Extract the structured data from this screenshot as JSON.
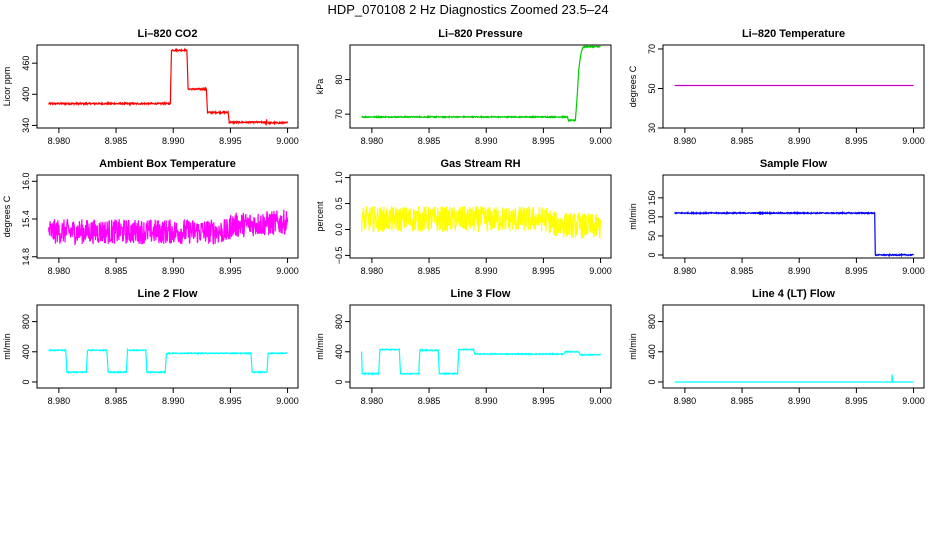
{
  "title": "HDP_070108  2 Hz Diagnostics Zoomed 23.5–24",
  "chart_data": [
    {
      "type": "line",
      "title": "Li–820 CO2",
      "ylabel": "Licor ppm",
      "color": "#ff0000",
      "xlim": [
        8.979,
        9.0
      ],
      "xticks": [
        8.98,
        8.985,
        8.99,
        8.995,
        9.0
      ],
      "xtick_labels": [
        "8.980",
        "8.985",
        "8.990",
        "8.995",
        "9.000"
      ],
      "ylim": [
        335,
        495
      ],
      "yticks": [
        340,
        400,
        460
      ],
      "ytick_labels": [
        "340",
        "400",
        "460"
      ],
      "noise": 1.5,
      "series": [
        {
          "points": [
            [
              8.9791,
              382
            ],
            [
              8.98975,
              382
            ],
            [
              8.98985,
              485
            ],
            [
              8.9912,
              485
            ],
            [
              8.9913,
              410
            ],
            [
              8.9929,
              410
            ],
            [
              8.993,
              365
            ],
            [
              8.9948,
              365
            ],
            [
              8.9949,
              346
            ],
            [
              8.9981,
              346
            ],
            [
              8.99812,
              340
            ],
            [
              8.99818,
              352
            ],
            [
              8.9982,
              345
            ],
            [
              9.0,
              345
            ]
          ]
        }
      ]
    },
    {
      "type": "line",
      "title": "Li–820 Pressure",
      "ylabel": "kPa",
      "color": "#00cc00",
      "xlim": [
        8.979,
        9.0
      ],
      "xticks": [
        8.98,
        8.985,
        8.99,
        8.995,
        9.0
      ],
      "xtick_labels": [
        "8.980",
        "8.985",
        "8.990",
        "8.995",
        "9.000"
      ],
      "ylim": [
        66,
        90
      ],
      "yticks": [
        70,
        80
      ],
      "ytick_labels": [
        "70",
        "80"
      ],
      "noise": 0.15,
      "series": [
        {
          "points": [
            [
              8.9791,
              69.2
            ],
            [
              8.9971,
              69.2
            ],
            [
              8.9972,
              68.2
            ],
            [
              8.9978,
              68.2
            ],
            [
              8.99795,
              75
            ],
            [
              8.9981,
              83
            ],
            [
              8.99825,
              87
            ],
            [
              8.9984,
              89
            ],
            [
              8.9986,
              89.5
            ],
            [
              9.0,
              89.5
            ]
          ]
        }
      ]
    },
    {
      "type": "line",
      "title": "Li–820 Temperature",
      "ylabel": "degrees C",
      "color": "#cc00cc",
      "xlim": [
        8.979,
        9.0
      ],
      "xticks": [
        8.98,
        8.985,
        8.99,
        8.995,
        9.0
      ],
      "xtick_labels": [
        "8.980",
        "8.985",
        "8.990",
        "8.995",
        "9.000"
      ],
      "ylim": [
        30,
        72
      ],
      "yticks": [
        30,
        50,
        70
      ],
      "ytick_labels": [
        "30",
        "50",
        "70"
      ],
      "noise": 0,
      "series": [
        {
          "points": [
            [
              8.9791,
              51.5
            ],
            [
              9.0,
              51.5
            ]
          ]
        }
      ]
    },
    {
      "type": "line",
      "title": "Ambient Box Temperature",
      "ylabel": "degrees C",
      "color": "#ff00ff",
      "xlim": [
        8.979,
        9.0
      ],
      "xticks": [
        8.98,
        8.985,
        8.99,
        8.995,
        9.0
      ],
      "xtick_labels": [
        "8.980",
        "8.985",
        "8.990",
        "8.995",
        "9.000"
      ],
      "ylim": [
        14.78,
        16.1
      ],
      "yticks": [
        14.8,
        15.4,
        16.0
      ],
      "ytick_labels": [
        "14.8",
        "15.4",
        "16.0"
      ],
      "noise": 0.2,
      "series": [
        {
          "points": [
            [
              8.9791,
              15.2
            ],
            [
              8.9949,
              15.2
            ],
            [
              8.995,
              15.3
            ],
            [
              9.0,
              15.35
            ]
          ]
        }
      ]
    },
    {
      "type": "line",
      "title": "Gas Stream RH",
      "ylabel": "percent",
      "color": "#ffff00",
      "xlim": [
        8.979,
        9.0
      ],
      "xticks": [
        8.98,
        8.985,
        8.99,
        8.995,
        9.0
      ],
      "xtick_labels": [
        "8.980",
        "8.985",
        "8.990",
        "8.995",
        "9.000"
      ],
      "ylim": [
        -0.55,
        1.05
      ],
      "yticks": [
        -0.5,
        0.0,
        0.5,
        1.0
      ],
      "ytick_labels": [
        "−0.5",
        "0.0",
        "0.5",
        "1.0"
      ],
      "noise": 0.25,
      "series": [
        {
          "points": [
            [
              8.9791,
              0.2
            ],
            [
              8.9952,
              0.2
            ],
            [
              8.996,
              0.1
            ],
            [
              9.0,
              0.05
            ]
          ]
        }
      ]
    },
    {
      "type": "line",
      "title": "Sample Flow",
      "ylabel": "ml/min",
      "color": "#0000ff",
      "xlim": [
        8.979,
        9.0
      ],
      "xticks": [
        8.98,
        8.985,
        8.99,
        8.995,
        9.0
      ],
      "xtick_labels": [
        "8.980",
        "8.985",
        "8.990",
        "8.995",
        "9.000"
      ],
      "ylim": [
        -8,
        210
      ],
      "yticks": [
        0,
        50,
        100,
        150
      ],
      "ytick_labels": [
        "0",
        "50",
        "100",
        "150"
      ],
      "noise": 1.5,
      "series": [
        {
          "points": [
            [
              8.9791,
              110
            ],
            [
              8.9966,
              110
            ],
            [
              8.99665,
              0
            ],
            [
              9.0,
              0
            ]
          ]
        }
      ]
    },
    {
      "type": "line",
      "title": "Line 2 Flow",
      "ylabel": "ml/min",
      "color": "#00ffff",
      "xlim": [
        8.979,
        9.0
      ],
      "xticks": [
        8.98,
        8.985,
        8.99,
        8.995,
        9.0
      ],
      "xtick_labels": [
        "8.980",
        "8.985",
        "8.990",
        "8.995",
        "9.000"
      ],
      "ylim": [
        -80,
        1020
      ],
      "yticks": [
        0,
        400,
        800
      ],
      "ytick_labels": [
        "0",
        "400",
        "800"
      ],
      "noise": 6,
      "series": [
        {
          "points": [
            [
              8.9791,
              420
            ],
            [
              8.9806,
              420
            ],
            [
              8.9807,
              130
            ],
            [
              8.9824,
              130
            ],
            [
              8.9825,
              420
            ],
            [
              8.9842,
              420
            ],
            [
              8.9843,
              130
            ],
            [
              8.9859,
              130
            ],
            [
              8.986,
              420
            ],
            [
              8.9876,
              420
            ],
            [
              8.9877,
              130
            ],
            [
              8.9893,
              130
            ],
            [
              8.9894,
              380
            ],
            [
              8.9968,
              380
            ],
            [
              8.9969,
              130
            ],
            [
              8.9982,
              130
            ],
            [
              8.9983,
              380
            ],
            [
              9.0,
              380
            ]
          ]
        }
      ]
    },
    {
      "type": "line",
      "title": "Line 3 Flow",
      "ylabel": "ml/min",
      "color": "#00ffff",
      "xlim": [
        8.979,
        9.0
      ],
      "xticks": [
        8.98,
        8.985,
        8.99,
        8.995,
        9.0
      ],
      "xtick_labels": [
        "8.980",
        "8.985",
        "8.990",
        "8.995",
        "9.000"
      ],
      "ylim": [
        -80,
        1020
      ],
      "yticks": [
        0,
        400,
        800
      ],
      "ytick_labels": [
        "0",
        "400",
        "800"
      ],
      "noise": 6,
      "series": [
        {
          "points": [
            [
              8.9791,
              400
            ],
            [
              8.97915,
              110
            ],
            [
              8.9806,
              110
            ],
            [
              8.9807,
              430
            ],
            [
              8.9824,
              430
            ],
            [
              8.9825,
              110
            ],
            [
              8.9841,
              110
            ],
            [
              8.9842,
              420
            ],
            [
              8.9858,
              420
            ],
            [
              8.9859,
              110
            ],
            [
              8.9875,
              110
            ],
            [
              8.9876,
              430
            ],
            [
              8.9889,
              430
            ],
            [
              8.989,
              370
            ],
            [
              8.9968,
              370
            ],
            [
              8.9969,
              400
            ],
            [
              8.9981,
              400
            ],
            [
              8.9982,
              360
            ],
            [
              9.0,
              360
            ]
          ]
        }
      ]
    },
    {
      "type": "line",
      "title": "Line 4 (LT) Flow",
      "ylabel": "ml/min",
      "color": "#00ffff",
      "xlim": [
        8.979,
        9.0
      ],
      "xticks": [
        8.98,
        8.985,
        8.99,
        8.995,
        9.0
      ],
      "xtick_labels": [
        "8.980",
        "8.985",
        "8.990",
        "8.995",
        "9.000"
      ],
      "ylim": [
        -80,
        1020
      ],
      "yticks": [
        0,
        400,
        800
      ],
      "ytick_labels": [
        "0",
        "400",
        "800"
      ],
      "noise": 0,
      "series": [
        {
          "points": [
            [
              8.9791,
              0
            ],
            [
              8.9981,
              0
            ],
            [
              8.99812,
              100
            ],
            [
              8.99818,
              0
            ],
            [
              9.0,
              0
            ]
          ]
        }
      ]
    }
  ]
}
